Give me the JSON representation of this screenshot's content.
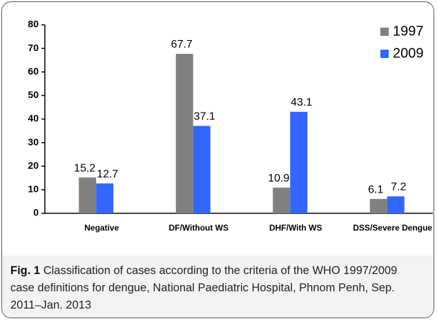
{
  "chart_data": {
    "type": "bar",
    "categories": [
      "Negative",
      "DF/Without WS",
      "DHF/With WS",
      "DSS/Severe Dengue"
    ],
    "series": [
      {
        "name": "1997",
        "color": "#808080",
        "values": [
          15.2,
          67.7,
          10.9,
          6.1
        ]
      },
      {
        "name": "2009",
        "color": "#3366ff",
        "values": [
          12.7,
          37.1,
          43.1,
          7.2
        ]
      }
    ],
    "ylim": [
      0,
      80
    ],
    "yticks": [
      0,
      10,
      20,
      30,
      40,
      50,
      60,
      70,
      80
    ],
    "grid": false,
    "legend": "top-right"
  },
  "caption": {
    "label": "Fig. 1",
    "text": "Classification of cases according to the criteria of the WHO 1997/2009 case definitions for dengue, National Paediatric Hospital, Phnom Penh, Sep. 2011–Jan. 2013"
  }
}
